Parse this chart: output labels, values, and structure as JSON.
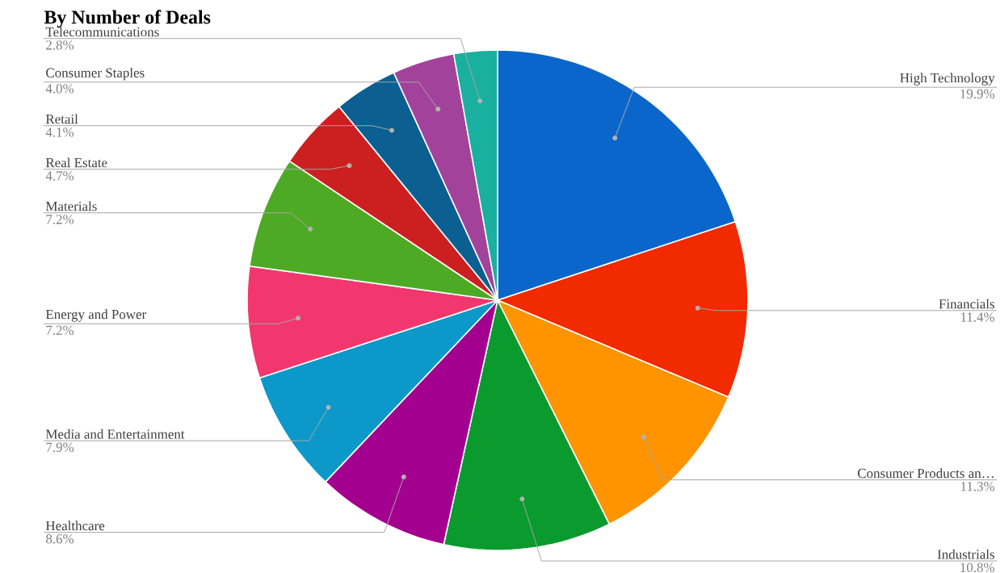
{
  "chart_data": {
    "type": "pie",
    "title": "By Number of Deals",
    "categories": [
      "High Technology",
      "Financials",
      "Consumer Products an…",
      "Industrials",
      "Healthcare",
      "Media and Entertainment",
      "Energy and Power",
      "Materials",
      "Real Estate",
      "Retail",
      "Consumer Staples",
      "Telecommunications"
    ],
    "values": [
      19.9,
      11.4,
      11.3,
      10.8,
      8.6,
      7.9,
      7.2,
      7.2,
      4.7,
      4.1,
      4.0,
      2.8
    ],
    "value_labels": [
      "19.9%",
      "11.4%",
      "11.3%",
      "10.8%",
      "8.6%",
      "7.9%",
      "7.2%",
      "7.2%",
      "4.7%",
      "4.1%",
      "4.0%",
      "2.8%"
    ],
    "colors": [
      "#0b66cc",
      "#f22a00",
      "#ff9400",
      "#0a9a2e",
      "#a4008f",
      "#0c99c9",
      "#f2366e",
      "#4eaa24",
      "#cc2020",
      "#0b5f91",
      "#a3429b",
      "#19b09f"
    ]
  }
}
